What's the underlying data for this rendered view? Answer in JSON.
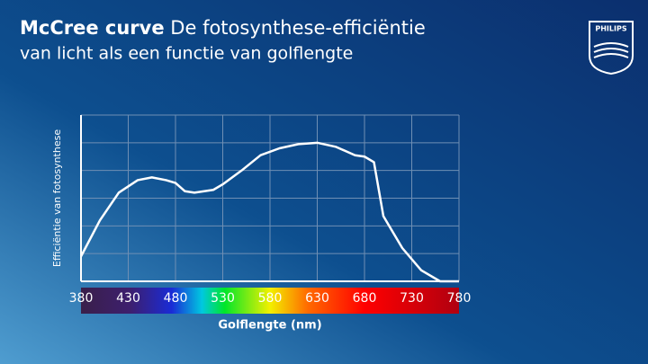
{
  "header": {
    "title_bold": "McCree curve",
    "title": "De fotosynthese-efficiëntie",
    "subtitle": "van licht als een functie van golflengte"
  },
  "logo": "PHILIPS",
  "chart_data": {
    "type": "line",
    "xlabel": "Golflengte (nm)",
    "ylabel": "Efficiëntie van fotosynthese",
    "x": [
      380,
      400,
      420,
      440,
      455,
      470,
      480,
      490,
      500,
      520,
      530,
      550,
      570,
      590,
      610,
      630,
      650,
      670,
      680,
      690,
      700,
      720,
      740,
      760,
      780
    ],
    "values": [
      0.9,
      2.2,
      3.2,
      3.65,
      3.75,
      3.65,
      3.55,
      3.25,
      3.2,
      3.3,
      3.5,
      4.0,
      4.55,
      4.8,
      4.95,
      5.0,
      4.85,
      4.55,
      4.5,
      4.3,
      2.35,
      1.2,
      0.4,
      0,
      0
    ],
    "color": "#ffffff",
    "xlim": [
      380,
      780
    ],
    "xticks": [
      380,
      430,
      480,
      530,
      580,
      630,
      680,
      730,
      780
    ],
    "ylim": [
      0,
      6
    ],
    "yticks": [
      0,
      1,
      2,
      3,
      4,
      5,
      6
    ],
    "grid": true
  }
}
